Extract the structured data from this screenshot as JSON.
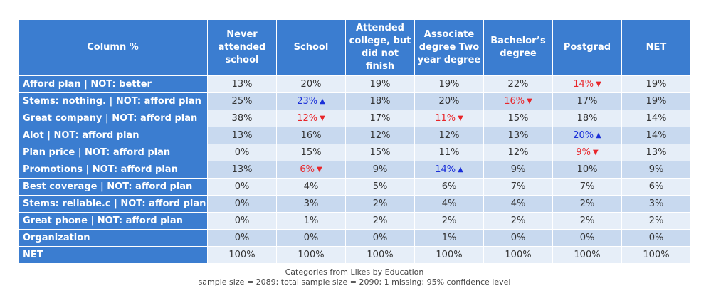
{
  "table": {
    "headers": [
      "Column %",
      "Never attended school",
      "School",
      "Attended college, but did not finish",
      "Associate degree Two year degree",
      "Bachelor’s degree",
      "Postgrad",
      "NET"
    ],
    "rows": [
      {
        "label": "Afford plan | NOT: better",
        "cells": [
          {
            "v": "13%"
          },
          {
            "v": "20%"
          },
          {
            "v": "19%"
          },
          {
            "v": "19%"
          },
          {
            "v": "22%"
          },
          {
            "v": "14%",
            "sig": "down"
          },
          {
            "v": "19%"
          }
        ]
      },
      {
        "label": "Stems: nothing. | NOT: afford plan",
        "cells": [
          {
            "v": "25%"
          },
          {
            "v": "23%",
            "sig": "up"
          },
          {
            "v": "18%"
          },
          {
            "v": "20%"
          },
          {
            "v": "16%",
            "sig": "down"
          },
          {
            "v": "17%"
          },
          {
            "v": "19%"
          }
        ]
      },
      {
        "label": "Great company | NOT: afford plan",
        "cells": [
          {
            "v": "38%"
          },
          {
            "v": "12%",
            "sig": "down"
          },
          {
            "v": "17%"
          },
          {
            "v": "11%",
            "sig": "down"
          },
          {
            "v": "15%"
          },
          {
            "v": "18%"
          },
          {
            "v": "14%"
          }
        ]
      },
      {
        "label": "Alot | NOT: afford plan",
        "cells": [
          {
            "v": "13%"
          },
          {
            "v": "16%"
          },
          {
            "v": "12%"
          },
          {
            "v": "12%"
          },
          {
            "v": "13%"
          },
          {
            "v": "20%",
            "sig": "up"
          },
          {
            "v": "14%"
          }
        ]
      },
      {
        "label": "Plan price | NOT: afford plan",
        "cells": [
          {
            "v": "0%"
          },
          {
            "v": "15%"
          },
          {
            "v": "15%"
          },
          {
            "v": "11%"
          },
          {
            "v": "12%"
          },
          {
            "v": "9%",
            "sig": "down"
          },
          {
            "v": "13%"
          }
        ]
      },
      {
        "label": "Promotions | NOT: afford plan",
        "cells": [
          {
            "v": "13%"
          },
          {
            "v": "6%",
            "sig": "down"
          },
          {
            "v": "9%"
          },
          {
            "v": "14%",
            "sig": "up"
          },
          {
            "v": "9%"
          },
          {
            "v": "10%"
          },
          {
            "v": "9%"
          }
        ]
      },
      {
        "label": "Best coverage | NOT: afford plan",
        "cells": [
          {
            "v": "0%"
          },
          {
            "v": "4%"
          },
          {
            "v": "5%"
          },
          {
            "v": "6%"
          },
          {
            "v": "7%"
          },
          {
            "v": "7%"
          },
          {
            "v": "6%"
          }
        ]
      },
      {
        "label": "Stems: reliable.c | NOT: afford plan",
        "cells": [
          {
            "v": "0%"
          },
          {
            "v": "3%"
          },
          {
            "v": "2%"
          },
          {
            "v": "4%"
          },
          {
            "v": "4%"
          },
          {
            "v": "2%"
          },
          {
            "v": "3%"
          }
        ]
      },
      {
        "label": "Great phone | NOT: afford plan",
        "cells": [
          {
            "v": "0%"
          },
          {
            "v": "1%"
          },
          {
            "v": "2%"
          },
          {
            "v": "2%"
          },
          {
            "v": "2%"
          },
          {
            "v": "2%"
          },
          {
            "v": "2%"
          }
        ]
      },
      {
        "label": "Organization",
        "cells": [
          {
            "v": "0%"
          },
          {
            "v": "0%"
          },
          {
            "v": "0%"
          },
          {
            "v": "1%"
          },
          {
            "v": "0%"
          },
          {
            "v": "0%"
          },
          {
            "v": "0%"
          }
        ]
      },
      {
        "label": "NET",
        "cells": [
          {
            "v": "100%"
          },
          {
            "v": "100%"
          },
          {
            "v": "100%"
          },
          {
            "v": "100%"
          },
          {
            "v": "100%"
          },
          {
            "v": "100%"
          },
          {
            "v": "100%"
          }
        ]
      }
    ]
  },
  "caption": {
    "line1": "Categories from Likes by Education",
    "line2": "sample size = 2089; total sample size = 2090; 1 missing; 95% confidence level"
  },
  "colors": {
    "header_bg": "#3b7dd0",
    "row_light": "#e6eef8",
    "row_dark": "#c8d9ef",
    "sig_up": "#1a2fd8",
    "sig_down": "#e8262a"
  },
  "icons": {
    "up": "arrow-up-icon",
    "down": "arrow-down-icon"
  }
}
